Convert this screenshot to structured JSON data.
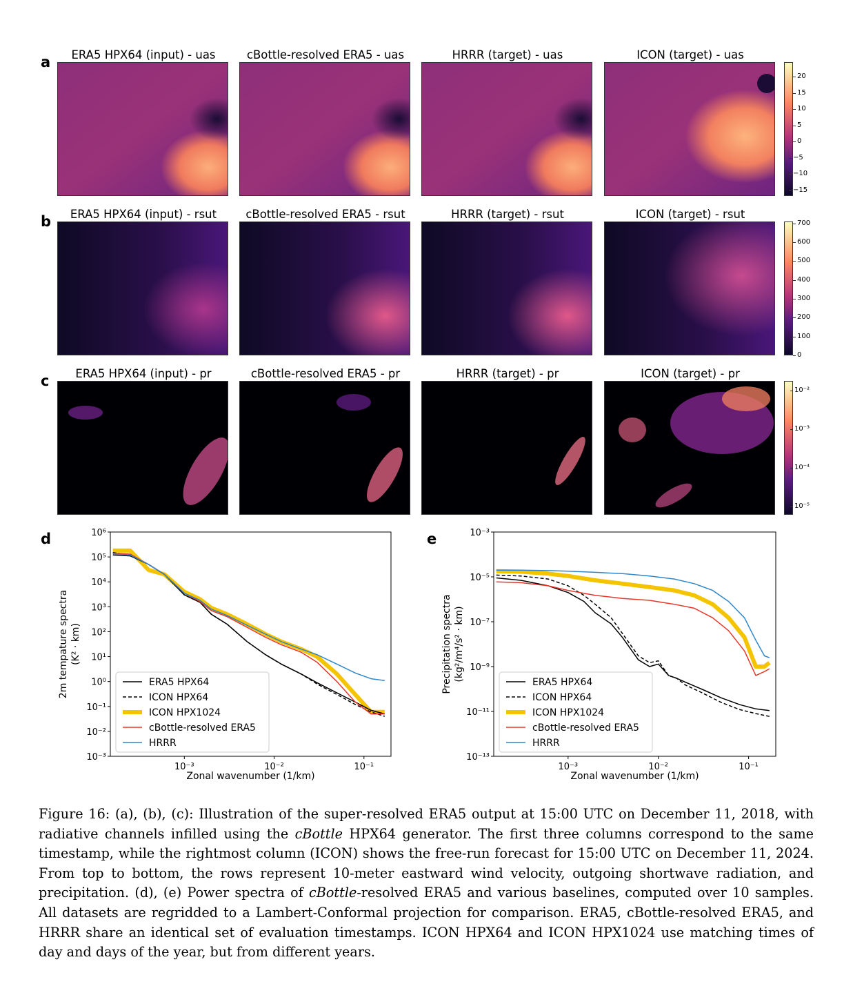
{
  "rows": [
    {
      "letter": "a",
      "titles": [
        "ERA5 HPX64 (input) - uas",
        "cBottle-resolved ERA5 - uas",
        "HRRR (target) - uas",
        "ICON (target) - uas"
      ],
      "colorbar_ticks": [
        "20",
        "15",
        "10",
        "5",
        "0",
        "−5",
        "−10",
        "−15"
      ]
    },
    {
      "letter": "b",
      "titles": [
        "ERA5 HPX64 (input) - rsut",
        "cBottle-resolved ERA5 - rsut",
        "HRRR (target) - rsut",
        "ICON (target) - rsut"
      ],
      "colorbar_ticks": [
        "700",
        "600",
        "500",
        "400",
        "300",
        "200",
        "100",
        "0"
      ]
    },
    {
      "letter": "c",
      "titles": [
        "ERA5 HPX64 (input) - pr",
        "cBottle-resolved ERA5 - pr",
        "HRRR (target) - pr",
        "ICON (target) - pr"
      ],
      "colorbar_ticks": [
        "10⁻²",
        "10⁻³",
        "10⁻⁴",
        "10⁻⁵"
      ]
    }
  ],
  "colors": {
    "magma_dark": "#0d0829",
    "magma_purple": "#5a1a7e",
    "magma_mid": "#b63779",
    "magma_orange": "#fb8761",
    "magma_light": "#fcfdbf",
    "era5": "#000000",
    "icon_hpx64": "#000000",
    "icon_hpx1024": "#f5c400",
    "cbottle": "#e8352a",
    "hrrr": "#2f86c8"
  },
  "chart_data": [
    {
      "panel": "d",
      "type": "line",
      "xlabel": "Zonal wavenumber (1/km)",
      "ylabel": "2m tempature spectra",
      "ylabel_unit": "(K² · km)",
      "xscale": "log",
      "yscale": "log",
      "xlim": [
        0.00015,
        0.2
      ],
      "ylim": [
        0.001,
        1000000
      ],
      "xticks": [
        0.001,
        0.01,
        0.1
      ],
      "xtick_labels": [
        "10⁻³",
        "10⁻²",
        "10⁻¹"
      ],
      "yticks": [
        0.001,
        0.01,
        0.1,
        1,
        10,
        100,
        1000,
        10000,
        100000,
        1000000
      ],
      "ytick_labels": [
        "10⁻³",
        "10⁻²",
        "10⁻¹",
        "10⁰",
        "10¹",
        "10²",
        "10³",
        "10⁴",
        "10⁵",
        "10⁶"
      ],
      "legend_position": "lower-left",
      "series": [
        {
          "name": "ERA5 HPX64",
          "style": "solid",
          "x": [
            0.00016,
            0.00025,
            0.0004,
            0.0006,
            0.001,
            0.0015,
            0.002,
            0.003,
            0.005,
            0.008,
            0.012,
            0.02,
            0.03,
            0.05,
            0.08,
            0.12,
            0.17
          ],
          "y": [
            120000,
            110000,
            50000,
            20000,
            3000,
            1500,
            500,
            200,
            40,
            12,
            5,
            2,
            0.9,
            0.35,
            0.15,
            0.07,
            0.05
          ]
        },
        {
          "name": "ICON HPX64",
          "style": "dashed",
          "x": [
            0.00016,
            0.00025,
            0.0004,
            0.0006,
            0.001,
            0.0015,
            0.002,
            0.003,
            0.005,
            0.008,
            0.012,
            0.02,
            0.03,
            0.05,
            0.08,
            0.12,
            0.17
          ],
          "y": [
            150000,
            120000,
            50000,
            20000,
            3000,
            1500,
            500,
            200,
            40,
            12,
            5,
            2,
            0.8,
            0.3,
            0.12,
            0.06,
            0.04
          ]
        },
        {
          "name": "ICON HPX1024",
          "style": "thick",
          "x": [
            0.00016,
            0.00025,
            0.0004,
            0.0006,
            0.001,
            0.0015,
            0.002,
            0.003,
            0.005,
            0.008,
            0.012,
            0.02,
            0.03,
            0.05,
            0.08,
            0.12,
            0.17
          ],
          "y": [
            180000,
            180000,
            30000,
            20000,
            4000,
            2000,
            900,
            500,
            200,
            80,
            40,
            20,
            10,
            2,
            0.3,
            0.06,
            0.06
          ]
        },
        {
          "name": "cBottle-resolved ERA5",
          "style": "solid",
          "x": [
            0.00016,
            0.00025,
            0.0004,
            0.0006,
            0.001,
            0.0015,
            0.002,
            0.003,
            0.005,
            0.008,
            0.012,
            0.02,
            0.03,
            0.05,
            0.08,
            0.12,
            0.17
          ],
          "y": [
            140000,
            130000,
            50000,
            20000,
            3500,
            1600,
            700,
            400,
            150,
            60,
            30,
            15,
            6,
            1,
            0.15,
            0.05,
            0.05
          ]
        },
        {
          "name": "HRRR",
          "style": "solid",
          "x": [
            0.00016,
            0.00025,
            0.0004,
            0.0006,
            0.001,
            0.0015,
            0.002,
            0.003,
            0.005,
            0.008,
            0.012,
            0.02,
            0.03,
            0.05,
            0.08,
            0.12,
            0.17
          ],
          "y": [
            130000,
            120000,
            50000,
            20000,
            3500,
            1800,
            800,
            450,
            180,
            80,
            40,
            20,
            12,
            5,
            2.2,
            1.3,
            1.1
          ]
        }
      ]
    },
    {
      "panel": "e",
      "type": "line",
      "xlabel": "Zonal wavenumber (1/km)",
      "ylabel": "Precipitation spectra",
      "ylabel_unit": "(kg²/m⁴/s² · km)",
      "xscale": "log",
      "yscale": "log",
      "xlim": [
        0.00015,
        0.2
      ],
      "ylim": [
        1e-13,
        0.001
      ],
      "xticks": [
        0.001,
        0.01,
        0.1
      ],
      "xtick_labels": [
        "10⁻³",
        "10⁻²",
        "10⁻¹"
      ],
      "yticks": [
        1e-13,
        1e-11,
        1e-09,
        1e-07,
        1e-05,
        0.001
      ],
      "ytick_labels": [
        "10⁻¹³",
        "10⁻¹¹",
        "10⁻⁹",
        "10⁻⁷",
        "10⁻⁵",
        "10⁻³"
      ],
      "legend_position": "lower-left",
      "series": [
        {
          "name": "ERA5 HPX64",
          "style": "solid",
          "x": [
            0.00016,
            0.0003,
            0.0006,
            0.001,
            0.0015,
            0.002,
            0.003,
            0.004,
            0.006,
            0.008,
            0.01,
            0.013,
            0.016,
            0.02,
            0.03,
            0.05,
            0.08,
            0.12,
            0.17
          ],
          "y": [
            9e-06,
            7e-06,
            4e-06,
            2e-06,
            8e-07,
            2.5e-07,
            8e-08,
            2e-08,
            2e-09,
            1e-09,
            1.3e-09,
            4e-10,
            3e-10,
            2e-10,
            1e-10,
            4e-11,
            2e-11,
            1.3e-11,
            1.1e-11
          ]
        },
        {
          "name": "ICON HPX64",
          "style": "dashed",
          "x": [
            0.00016,
            0.0003,
            0.0006,
            0.001,
            0.0015,
            0.002,
            0.003,
            0.004,
            0.006,
            0.008,
            0.01,
            0.013,
            0.016,
            0.02,
            0.03,
            0.05,
            0.08,
            0.12,
            0.17
          ],
          "y": [
            1.2e-05,
            1.1e-05,
            8e-06,
            4e-06,
            1.5e-06,
            6e-07,
            1.5e-07,
            3e-08,
            3e-09,
            1.5e-09,
            1.8e-09,
            4e-10,
            3e-10,
            1.5e-10,
            7e-11,
            2.5e-11,
            1.2e-11,
            8e-12,
            6e-12
          ]
        },
        {
          "name": "ICON HPX1024",
          "style": "thick",
          "x": [
            0.00016,
            0.0003,
            0.0006,
            0.001,
            0.002,
            0.004,
            0.008,
            0.015,
            0.025,
            0.04,
            0.06,
            0.09,
            0.12,
            0.15,
            0.17
          ],
          "y": [
            1.8e-05,
            1.7e-05,
            1.4e-05,
            1.1e-05,
            7e-06,
            5e-06,
            3.5e-06,
            2.5e-06,
            1.5e-06,
            6e-07,
            1.5e-07,
            2e-08,
            1e-09,
            1e-09,
            1.5e-09
          ]
        },
        {
          "name": "cBottle-resolved ERA5",
          "style": "solid",
          "x": [
            0.00016,
            0.0003,
            0.0006,
            0.001,
            0.002,
            0.004,
            0.008,
            0.015,
            0.025,
            0.04,
            0.06,
            0.09,
            0.12,
            0.15,
            0.17
          ],
          "y": [
            6e-06,
            5.5e-06,
            4e-06,
            2.5e-06,
            1.5e-06,
            1.1e-06,
            9e-07,
            6e-07,
            4e-07,
            1.5e-07,
            4e-08,
            5e-09,
            4e-10,
            6e-10,
            8e-10
          ]
        },
        {
          "name": "HRRR",
          "style": "solid",
          "x": [
            0.00016,
            0.0003,
            0.0006,
            0.001,
            0.002,
            0.004,
            0.008,
            0.015,
            0.025,
            0.04,
            0.06,
            0.09,
            0.12,
            0.15,
            0.17
          ],
          "y": [
            2e-05,
            2e-05,
            1.9e-05,
            1.8e-05,
            1.6e-05,
            1.4e-05,
            1.1e-05,
            8e-06,
            5e-06,
            2.5e-06,
            8e-07,
            1.5e-07,
            1.5e-08,
            3e-09,
            2.5e-09
          ]
        }
      ]
    }
  ],
  "caption": {
    "fig_label": "Figure 16:",
    "t1": " (a), (b), (c): Illustration of the super-resolved ERA5 output at 15:00 UTC on December 11, 2018, with radiative channels infilled using the ",
    "em1": "cBottle",
    "t2": " HPX64 generator. The first three columns correspond to the same timestamp, while the rightmost column (ICON) shows the free-run forecast for 15:00 UTC on December 11, 2024. From top to bottom, the rows represent 10-meter eastward wind velocity, outgoing shortwave radiation, and precipitation. (d), (e) Power spectra of ",
    "em2": "cBottle",
    "t3": "-resolved ERA5 and various baselines, computed over 10 samples. All datasets are regridded to a Lambert-Conformal projection for comparison. ERA5, cBottle-resolved ERA5, and HRRR share an identical set of evaluation timestamps. ICON HPX64 and ICON HPX1024 use matching times of day and days of the year, but from different years."
  }
}
